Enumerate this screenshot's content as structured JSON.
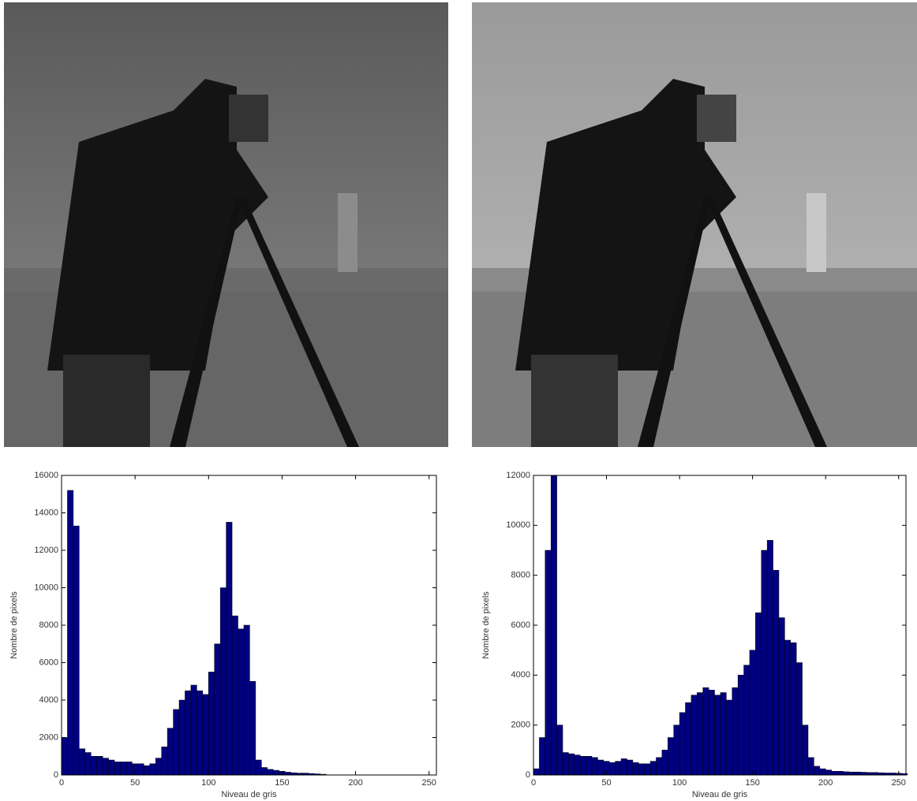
{
  "chart_data": [
    {
      "type": "histogram",
      "xlabel": "Niveau de gris",
      "ylabel": "Nombre de pixels",
      "color": "#000080",
      "bins": [
        0,
        4,
        8,
        12,
        16,
        20,
        24,
        28,
        32,
        36,
        40,
        44,
        48,
        52,
        56,
        60,
        64,
        68,
        72,
        76,
        80,
        84,
        88,
        92,
        96,
        100,
        104,
        108,
        112,
        116,
        120,
        124,
        128,
        132,
        136,
        140,
        144,
        148,
        152,
        156,
        160,
        164,
        168,
        172,
        176,
        180,
        184,
        188,
        192,
        196,
        200,
        204,
        208,
        212,
        216,
        220,
        224,
        228,
        232,
        236,
        240,
        244,
        248,
        252,
        256
      ],
      "values": [
        2000,
        15200,
        13300,
        1400,
        1200,
        1000,
        1000,
        900,
        800,
        700,
        700,
        700,
        600,
        600,
        500,
        600,
        900,
        1500,
        2500,
        3500,
        4000,
        4500,
        4800,
        4500,
        4300,
        5500,
        7000,
        10000,
        13500,
        8500,
        7800,
        8000,
        5000,
        800,
        400,
        300,
        250,
        200,
        150,
        120,
        100,
        100,
        80,
        60,
        40,
        0,
        0,
        0,
        0,
        0,
        0,
        0,
        0,
        0,
        0,
        0,
        0,
        0,
        0,
        0,
        0,
        0,
        0,
        0
      ],
      "xlim": [
        0,
        255
      ],
      "xticks": [
        0,
        50,
        100,
        150,
        200,
        250
      ],
      "ylim": [
        0,
        16000
      ],
      "yticks": [
        0,
        2000,
        4000,
        6000,
        8000,
        10000,
        12000,
        14000,
        16000
      ]
    },
    {
      "type": "histogram",
      "xlabel": "Niveau de gris",
      "ylabel": "Nombre de pixels",
      "color": "#000080",
      "bins": [
        0,
        4,
        8,
        12,
        16,
        20,
        24,
        28,
        32,
        36,
        40,
        44,
        48,
        52,
        56,
        60,
        64,
        68,
        72,
        76,
        80,
        84,
        88,
        92,
        96,
        100,
        104,
        108,
        112,
        116,
        120,
        124,
        128,
        132,
        136,
        140,
        144,
        148,
        152,
        156,
        160,
        164,
        168,
        172,
        176,
        180,
        184,
        188,
        192,
        196,
        200,
        204,
        208,
        212,
        216,
        220,
        224,
        228,
        232,
        236,
        240,
        244,
        248,
        252,
        256
      ],
      "values": [
        250,
        1500,
        9000,
        12000,
        2000,
        900,
        850,
        800,
        750,
        750,
        700,
        600,
        550,
        500,
        550,
        650,
        600,
        500,
        450,
        450,
        550,
        700,
        1000,
        1500,
        2000,
        2500,
        2900,
        3200,
        3300,
        3500,
        3400,
        3200,
        3300,
        3000,
        3500,
        4000,
        4400,
        5000,
        6500,
        9000,
        9400,
        8200,
        6300,
        5400,
        5300,
        4500,
        2000,
        700,
        350,
        250,
        200,
        150,
        150,
        130,
        120,
        120,
        110,
        100,
        100,
        90,
        80,
        80,
        70,
        60
      ],
      "xlim": [
        0,
        255
      ],
      "xticks": [
        0,
        50,
        100,
        150,
        200,
        250
      ],
      "ylim": [
        0,
        12000
      ],
      "yticks": [
        0,
        2000,
        4000,
        6000,
        8000,
        10000,
        12000
      ]
    }
  ]
}
